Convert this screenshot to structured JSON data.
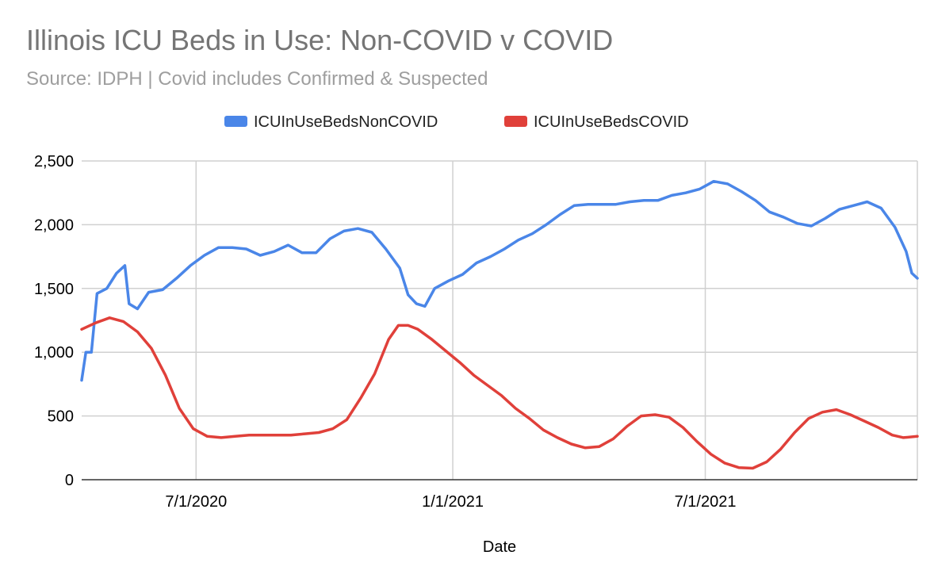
{
  "chart_data": {
    "type": "line",
    "title": "Illinois ICU Beds in Use: Non-COVID v COVID",
    "subtitle": "Source: IDPH | Covid includes Confirmed & Suspected",
    "xlabel": "Date",
    "ylabel": "",
    "x_start": "2020-04-10",
    "x_end": "2021-11-30",
    "xticks": [
      {
        "date": "2020-07-01",
        "label": "7/1/2020"
      },
      {
        "date": "2021-01-01",
        "label": "1/1/2021"
      },
      {
        "date": "2021-07-01",
        "label": "7/1/2021"
      }
    ],
    "ylim": [
      0,
      2500
    ],
    "yticks": [
      0,
      500,
      1000,
      1500,
      2000,
      2500
    ],
    "ytick_labels": [
      "0",
      "500",
      "1,000",
      "1,500",
      "2,000",
      "2,500"
    ],
    "grid": true,
    "legend_position": "top",
    "series": [
      {
        "name": "ICUInUseBedsNonCOVID",
        "color": "#4a86e8",
        "points": [
          [
            "2020-04-10",
            780
          ],
          [
            "2020-04-13",
            1000
          ],
          [
            "2020-04-17",
            1000
          ],
          [
            "2020-04-21",
            1460
          ],
          [
            "2020-04-28",
            1500
          ],
          [
            "2020-05-05",
            1620
          ],
          [
            "2020-05-11",
            1680
          ],
          [
            "2020-05-14",
            1380
          ],
          [
            "2020-05-20",
            1340
          ],
          [
            "2020-05-28",
            1470
          ],
          [
            "2020-06-07",
            1490
          ],
          [
            "2020-06-17",
            1580
          ],
          [
            "2020-06-27",
            1680
          ],
          [
            "2020-07-07",
            1760
          ],
          [
            "2020-07-17",
            1820
          ],
          [
            "2020-07-27",
            1820
          ],
          [
            "2020-08-06",
            1810
          ],
          [
            "2020-08-16",
            1760
          ],
          [
            "2020-08-26",
            1790
          ],
          [
            "2020-09-05",
            1840
          ],
          [
            "2020-09-15",
            1780
          ],
          [
            "2020-09-25",
            1780
          ],
          [
            "2020-10-05",
            1890
          ],
          [
            "2020-10-15",
            1950
          ],
          [
            "2020-10-25",
            1970
          ],
          [
            "2020-11-04",
            1940
          ],
          [
            "2020-11-14",
            1810
          ],
          [
            "2020-11-24",
            1660
          ],
          [
            "2020-11-30",
            1450
          ],
          [
            "2020-12-06",
            1380
          ],
          [
            "2020-12-12",
            1360
          ],
          [
            "2020-12-19",
            1500
          ],
          [
            "2020-12-29",
            1560
          ],
          [
            "2021-01-08",
            1610
          ],
          [
            "2021-01-18",
            1700
          ],
          [
            "2021-01-28",
            1750
          ],
          [
            "2021-02-07",
            1810
          ],
          [
            "2021-02-17",
            1880
          ],
          [
            "2021-02-27",
            1930
          ],
          [
            "2021-03-09",
            2000
          ],
          [
            "2021-03-19",
            2080
          ],
          [
            "2021-03-29",
            2150
          ],
          [
            "2021-04-08",
            2160
          ],
          [
            "2021-04-18",
            2160
          ],
          [
            "2021-04-28",
            2160
          ],
          [
            "2021-05-08",
            2180
          ],
          [
            "2021-05-18",
            2190
          ],
          [
            "2021-05-28",
            2190
          ],
          [
            "2021-06-07",
            2230
          ],
          [
            "2021-06-17",
            2250
          ],
          [
            "2021-06-27",
            2280
          ],
          [
            "2021-07-07",
            2340
          ],
          [
            "2021-07-17",
            2320
          ],
          [
            "2021-07-27",
            2260
          ],
          [
            "2021-08-06",
            2190
          ],
          [
            "2021-08-16",
            2100
          ],
          [
            "2021-08-26",
            2060
          ],
          [
            "2021-09-05",
            2010
          ],
          [
            "2021-09-15",
            1990
          ],
          [
            "2021-09-25",
            2050
          ],
          [
            "2021-10-05",
            2120
          ],
          [
            "2021-10-15",
            2150
          ],
          [
            "2021-10-25",
            2180
          ],
          [
            "2021-11-04",
            2130
          ],
          [
            "2021-11-14",
            1980
          ],
          [
            "2021-11-22",
            1790
          ],
          [
            "2021-11-26",
            1620
          ],
          [
            "2021-11-30",
            1580
          ]
        ]
      },
      {
        "name": "ICUInUseBedsCOVID",
        "color": "#e0403a",
        "points": [
          [
            "2020-04-10",
            1180
          ],
          [
            "2020-04-20",
            1230
          ],
          [
            "2020-04-30",
            1270
          ],
          [
            "2020-05-10",
            1240
          ],
          [
            "2020-05-20",
            1160
          ],
          [
            "2020-05-30",
            1030
          ],
          [
            "2020-06-09",
            820
          ],
          [
            "2020-06-19",
            560
          ],
          [
            "2020-06-29",
            400
          ],
          [
            "2020-07-09",
            340
          ],
          [
            "2020-07-19",
            330
          ],
          [
            "2020-07-29",
            340
          ],
          [
            "2020-08-08",
            350
          ],
          [
            "2020-08-18",
            350
          ],
          [
            "2020-08-28",
            350
          ],
          [
            "2020-09-07",
            350
          ],
          [
            "2020-09-17",
            360
          ],
          [
            "2020-09-27",
            370
          ],
          [
            "2020-10-07",
            400
          ],
          [
            "2020-10-17",
            470
          ],
          [
            "2020-10-27",
            640
          ],
          [
            "2020-11-06",
            830
          ],
          [
            "2020-11-16",
            1100
          ],
          [
            "2020-11-23",
            1210
          ],
          [
            "2020-11-30",
            1210
          ],
          [
            "2020-12-07",
            1180
          ],
          [
            "2020-12-17",
            1100
          ],
          [
            "2020-12-27",
            1010
          ],
          [
            "2021-01-06",
            920
          ],
          [
            "2021-01-16",
            820
          ],
          [
            "2021-01-26",
            740
          ],
          [
            "2021-02-05",
            660
          ],
          [
            "2021-02-15",
            560
          ],
          [
            "2021-02-25",
            480
          ],
          [
            "2021-03-07",
            390
          ],
          [
            "2021-03-17",
            330
          ],
          [
            "2021-03-27",
            280
          ],
          [
            "2021-04-06",
            250
          ],
          [
            "2021-04-16",
            260
          ],
          [
            "2021-04-26",
            320
          ],
          [
            "2021-05-06",
            420
          ],
          [
            "2021-05-16",
            500
          ],
          [
            "2021-05-26",
            510
          ],
          [
            "2021-06-05",
            490
          ],
          [
            "2021-06-15",
            410
          ],
          [
            "2021-06-25",
            300
          ],
          [
            "2021-07-05",
            200
          ],
          [
            "2021-07-15",
            130
          ],
          [
            "2021-07-25",
            95
          ],
          [
            "2021-08-04",
            90
          ],
          [
            "2021-08-14",
            140
          ],
          [
            "2021-08-24",
            240
          ],
          [
            "2021-09-03",
            370
          ],
          [
            "2021-09-13",
            480
          ],
          [
            "2021-09-23",
            530
          ],
          [
            "2021-10-03",
            550
          ],
          [
            "2021-10-13",
            510
          ],
          [
            "2021-10-23",
            460
          ],
          [
            "2021-11-02",
            410
          ],
          [
            "2021-11-12",
            350
          ],
          [
            "2021-11-20",
            330
          ],
          [
            "2021-11-30",
            340
          ]
        ]
      }
    ]
  }
}
